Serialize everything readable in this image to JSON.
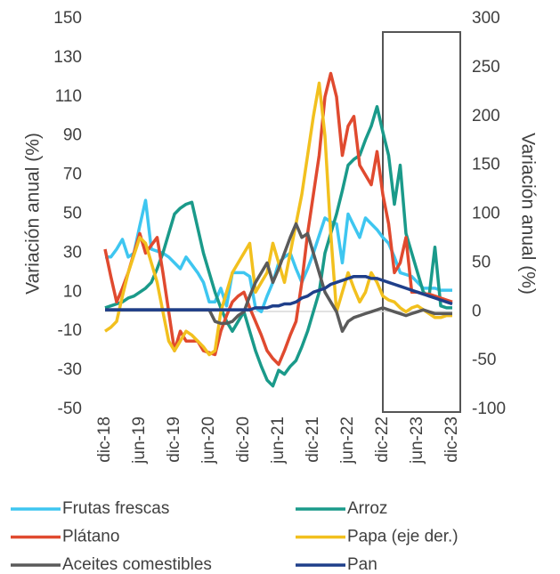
{
  "chart_data": {
    "type": "line",
    "ylabel": "Variación anual (%)",
    "y2label": "Variación anual (%)",
    "categories": [
      "dic-18",
      null,
      null,
      null,
      null,
      null,
      "jun-19",
      null,
      null,
      null,
      null,
      null,
      "dic-19",
      null,
      null,
      null,
      null,
      null,
      "jun-20",
      null,
      null,
      null,
      null,
      null,
      "dic-20",
      null,
      null,
      null,
      null,
      null,
      "jun-21",
      null,
      null,
      null,
      null,
      null,
      "dic-21",
      null,
      null,
      null,
      null,
      null,
      "jun-22",
      null,
      null,
      null,
      null,
      null,
      "dic-22",
      null,
      null,
      null,
      null,
      null,
      "jun-23",
      null,
      null,
      null,
      null,
      null,
      "dic-23"
    ],
    "ylim": [
      -50,
      150
    ],
    "yticks": [
      -50,
      -30,
      -10,
      10,
      30,
      50,
      70,
      90,
      110,
      130,
      150
    ],
    "y2lim": [
      -100,
      300
    ],
    "y2ticks": [
      -100,
      -50,
      0,
      50,
      100,
      150,
      200,
      250,
      300
    ],
    "series": [
      {
        "name": "Frutas frescas",
        "color": "#3ec6f0",
        "values": [
          28,
          28,
          32,
          37,
          28,
          30,
          44,
          57,
          32,
          31,
          30,
          28,
          25,
          22,
          28,
          24,
          20,
          15,
          5,
          5,
          12,
          3,
          20,
          20,
          20,
          18,
          2,
          0,
          8,
          15,
          25,
          28,
          30,
          22,
          15,
          22,
          30,
          39,
          48,
          46,
          45,
          25,
          50,
          44,
          38,
          48,
          45,
          42,
          38,
          35,
          28,
          20,
          19,
          18,
          15,
          12,
          12,
          12,
          11,
          11,
          11
        ]
      },
      {
        "name": "Arroz",
        "color": "#1a9a8a",
        "values": [
          2,
          3,
          4,
          5,
          7,
          8,
          10,
          12,
          15,
          22,
          30,
          40,
          50,
          53,
          55,
          56,
          43,
          30,
          20,
          10,
          2,
          -5,
          -10,
          -5,
          0,
          -10,
          -20,
          -28,
          -35,
          -38,
          -30,
          -32,
          -28,
          -25,
          -18,
          -10,
          0,
          10,
          30,
          40,
          50,
          62,
          75,
          78,
          80,
          88,
          95,
          105,
          92,
          80,
          55,
          75,
          40,
          30,
          20,
          10,
          8,
          33,
          3,
          2,
          2
        ]
      },
      {
        "name": "Plátano",
        "color": "#e04a2f",
        "values": [
          32,
          18,
          5,
          12,
          20,
          30,
          40,
          30,
          34,
          38,
          20,
          0,
          -20,
          -10,
          -15,
          -15,
          -15,
          -20,
          -21,
          -22,
          -10,
          -2,
          5,
          8,
          10,
          2,
          -5,
          -12,
          -20,
          -24,
          -27,
          -20,
          -12,
          -5,
          15,
          40,
          60,
          80,
          110,
          122,
          110,
          80,
          95,
          100,
          75,
          70,
          65,
          82,
          60,
          45,
          20,
          25,
          38,
          10,
          10,
          9,
          9,
          8,
          7,
          6,
          5
        ]
      },
      {
        "name": "Papa (eje der.)",
        "color": "#f2c01e",
        "axis": "y2",
        "values": [
          -20,
          -16,
          -10,
          16,
          40,
          58,
          76,
          70,
          50,
          30,
          0,
          -30,
          -40,
          -30,
          -20,
          -24,
          -30,
          -36,
          -44,
          -40,
          0,
          20,
          40,
          50,
          60,
          70,
          20,
          30,
          40,
          70,
          50,
          30,
          60,
          90,
          120,
          160,
          200,
          234,
          180,
          80,
          0,
          20,
          40,
          24,
          10,
          20,
          40,
          30,
          16,
          12,
          10,
          4,
          0,
          4,
          6,
          2,
          -2,
          -6,
          -6,
          -4,
          -4
        ]
      },
      {
        "name": "Aceites comestibles",
        "color": "#5a5a5a",
        "values": [
          1,
          1,
          1,
          1,
          1,
          1,
          1,
          1,
          1,
          1,
          1,
          1,
          1,
          1,
          1,
          1,
          1,
          1,
          1,
          -5,
          -6,
          -6,
          -5,
          -2,
          0,
          8,
          15,
          20,
          25,
          15,
          22,
          30,
          38,
          45,
          38,
          40,
          30,
          20,
          10,
          5,
          0,
          -10,
          -5,
          -3,
          -2,
          -1,
          0,
          1,
          2,
          1,
          0,
          -1,
          -2,
          -1,
          0,
          1,
          0,
          -1,
          -1,
          -1,
          -1
        ]
      },
      {
        "name": "Pan",
        "color": "#1f3f8a",
        "values": [
          1,
          1,
          1,
          1,
          1,
          1,
          1,
          1,
          1,
          1,
          1,
          1,
          1,
          1,
          1,
          1,
          1,
          1,
          1,
          1,
          1,
          1,
          1,
          1,
          1,
          1,
          2,
          2,
          2,
          3,
          3,
          4,
          4,
          5,
          7,
          8,
          10,
          11,
          12,
          14,
          15,
          16,
          17,
          18,
          18,
          18,
          17,
          17,
          16,
          15,
          14,
          13,
          12,
          11,
          10,
          9,
          8,
          7,
          6,
          5,
          4
        ]
      }
    ]
  }
}
